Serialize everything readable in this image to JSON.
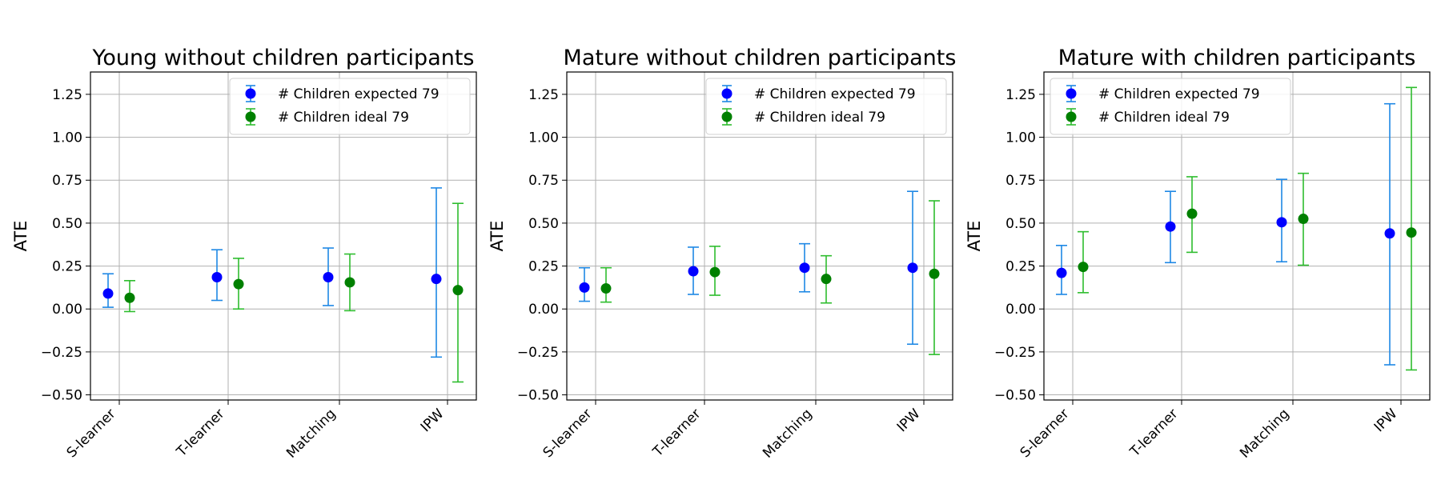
{
  "chart_data": [
    {
      "type": "scatter",
      "title": "Young without children participants",
      "ylabel": "ATE",
      "categories": [
        "S-learner",
        "T-learner",
        "Matching",
        "IPW"
      ],
      "ylim": [
        -0.53,
        1.38
      ],
      "yticks": [
        -0.5,
        -0.25,
        0.0,
        0.25,
        0.5,
        0.75,
        1.0,
        1.25
      ],
      "grid": true,
      "legend_position": "top-right",
      "series": [
        {
          "name": "# Children expected 79",
          "color": "#0000ff",
          "errcolor": "#1e88e5",
          "values": [
            0.09,
            0.185,
            0.185,
            0.175
          ],
          "lower": [
            0.01,
            0.05,
            0.02,
            -0.28
          ],
          "upper": [
            0.205,
            0.345,
            0.355,
            0.705
          ]
        },
        {
          "name": "# Children ideal 79",
          "color": "#008000",
          "errcolor": "#2ebd2e",
          "values": [
            0.065,
            0.145,
            0.155,
            0.11
          ],
          "lower": [
            -0.015,
            0.0,
            -0.01,
            -0.425
          ],
          "upper": [
            0.165,
            0.295,
            0.32,
            0.615
          ]
        }
      ]
    },
    {
      "type": "scatter",
      "title": "Mature without children participants",
      "ylabel": "ATE",
      "categories": [
        "S-learner",
        "T-learner",
        "Matching",
        "IPW"
      ],
      "ylim": [
        -0.53,
        1.38
      ],
      "yticks": [
        -0.5,
        -0.25,
        0.0,
        0.25,
        0.5,
        0.75,
        1.0,
        1.25
      ],
      "grid": true,
      "legend_position": "top-right",
      "series": [
        {
          "name": "# Children expected 79",
          "color": "#0000ff",
          "errcolor": "#1e88e5",
          "values": [
            0.125,
            0.22,
            0.24,
            0.24
          ],
          "lower": [
            0.045,
            0.085,
            0.1,
            -0.205
          ],
          "upper": [
            0.24,
            0.36,
            0.38,
            0.685
          ]
        },
        {
          "name": "# Children ideal 79",
          "color": "#008000",
          "errcolor": "#2ebd2e",
          "values": [
            0.12,
            0.215,
            0.175,
            0.205
          ],
          "lower": [
            0.04,
            0.08,
            0.035,
            -0.265
          ],
          "upper": [
            0.24,
            0.365,
            0.31,
            0.63
          ]
        }
      ]
    },
    {
      "type": "scatter",
      "title": "Mature with children participants",
      "ylabel": "ATE",
      "categories": [
        "S-learner",
        "T-learner",
        "Matching",
        "IPW"
      ],
      "ylim": [
        -0.53,
        1.38
      ],
      "yticks": [
        -0.5,
        -0.25,
        0.0,
        0.25,
        0.5,
        0.75,
        1.0,
        1.25
      ],
      "grid": true,
      "legend_position": "top-left",
      "series": [
        {
          "name": "# Children expected 79",
          "color": "#0000ff",
          "errcolor": "#1e88e5",
          "values": [
            0.21,
            0.48,
            0.505,
            0.44
          ],
          "lower": [
            0.085,
            0.27,
            0.275,
            -0.325
          ],
          "upper": [
            0.37,
            0.685,
            0.755,
            1.195
          ]
        },
        {
          "name": "# Children ideal 79",
          "color": "#008000",
          "errcolor": "#2ebd2e",
          "values": [
            0.245,
            0.555,
            0.525,
            0.445
          ],
          "lower": [
            0.095,
            0.33,
            0.255,
            -0.355
          ],
          "upper": [
            0.45,
            0.77,
            0.79,
            1.29
          ]
        }
      ]
    }
  ]
}
